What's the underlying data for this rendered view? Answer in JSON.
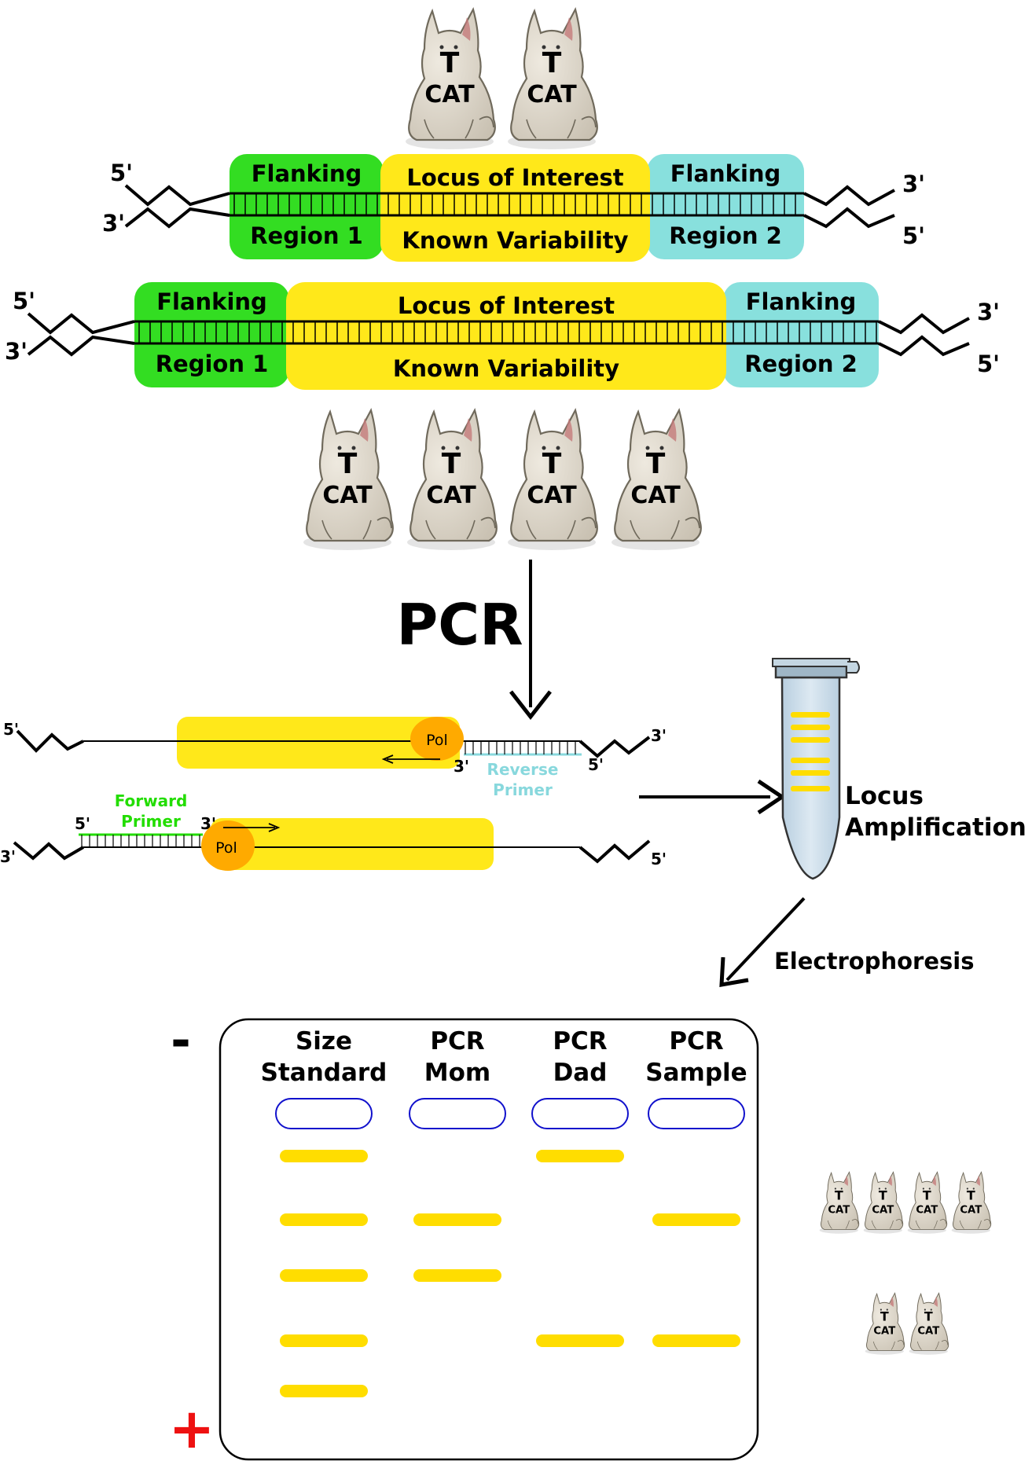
{
  "colors": {
    "flank1": "#33dd22",
    "locus": "#ffe81a",
    "flank2": "#88e0dd",
    "pol": "#ffaa00",
    "forward_primer": "#22dd00",
    "reverse_primer": "#88d8dd",
    "well": "#1111cc",
    "band": "#ffdd00",
    "plus": "#ee1111",
    "cat_body": "#e0d9cc",
    "cat_outline": "#777060"
  },
  "icons": {
    "cat": "cat-icon",
    "tube": "microtube-icon",
    "polymerase": "polymerase-blob"
  },
  "cat_label": {
    "top": "T",
    "bottom": "CAT"
  },
  "strand_ends": {
    "five": "5'",
    "three": "3'"
  },
  "allele_short": {
    "flank1_top": "Flanking",
    "flank1_bottom": "Region 1",
    "locus_top": "Locus of Interest",
    "locus_bottom": "Known Variability",
    "flank2_top": "Flanking",
    "flank2_bottom": "Region 2",
    "repeat_count": 2
  },
  "allele_long": {
    "flank1_top": "Flanking",
    "flank1_bottom": "Region 1",
    "locus_top": "Locus of Interest",
    "locus_bottom": "Known Variability",
    "flank2_top": "Flanking",
    "flank2_bottom": "Region 2",
    "repeat_count": 4
  },
  "pcr": {
    "title": "PCR",
    "pol_label": "Pol",
    "reverse_primer": [
      "Reverse",
      "Primer"
    ],
    "forward_primer": [
      "Forward",
      "Primer"
    ]
  },
  "tube": {
    "label": [
      "Locus",
      "Amplification"
    ],
    "band_count": 6
  },
  "electrophoresis": {
    "label": "Electrophoresis"
  },
  "gel": {
    "minus": "-",
    "plus": "+",
    "lanes": [
      {
        "name": [
          "Size",
          "Standard"
        ],
        "bands": [
          1,
          2,
          3,
          4,
          5
        ]
      },
      {
        "name": [
          "PCR",
          "Mom"
        ],
        "bands": [
          2,
          3
        ]
      },
      {
        "name": [
          "PCR",
          "Dad"
        ],
        "bands": [
          1,
          4
        ]
      },
      {
        "name": [
          "PCR",
          "Sample"
        ],
        "bands": [
          2,
          4
        ]
      }
    ],
    "legend_rows": [
      {
        "band": 2,
        "cats": 4
      },
      {
        "band": 4,
        "cats": 2
      }
    ]
  }
}
